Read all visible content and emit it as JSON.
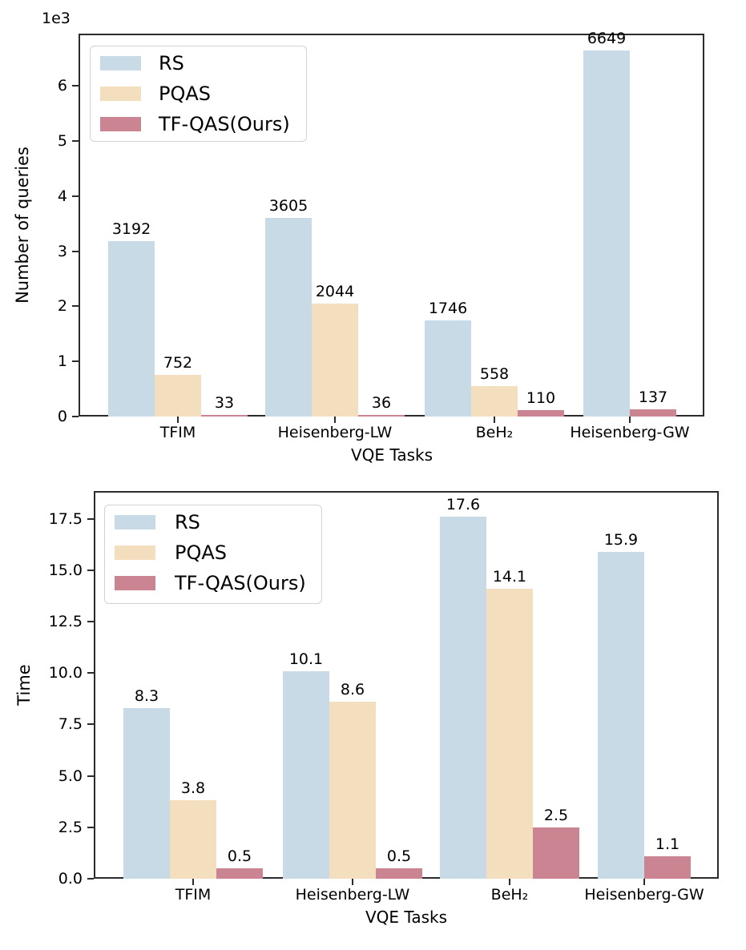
{
  "figure": {
    "background": "#ffffff",
    "text_color": "#000000",
    "spine_color": "#2b2b2b"
  },
  "chart_data": [
    {
      "type": "bar",
      "title": "",
      "xlabel": "VQE Tasks",
      "ylabel": "Number of queries",
      "offset_text": "1e3",
      "categories": [
        "TFIM",
        "Heisenberg-LW",
        "BeH₂",
        "Heisenberg-GW"
      ],
      "series": [
        {
          "name": "RS",
          "color": "#c9dae7",
          "values": [
            3192,
            3605,
            1746,
            6649
          ],
          "labels": [
            "3192",
            "3605",
            "1746",
            "6649"
          ]
        },
        {
          "name": "PQAS",
          "color": "#f3dfbe",
          "values": [
            752,
            2044,
            558,
            null
          ],
          "labels": [
            "752",
            "2044",
            "558",
            null
          ]
        },
        {
          "name": "TF-QAS(Ours)",
          "color": "#cb8592",
          "values": [
            33,
            36,
            110,
            137
          ],
          "labels": [
            "33",
            "36",
            "110",
            "137"
          ]
        }
      ],
      "ylim": [
        0,
        6950
      ],
      "yticks": [
        0,
        1000,
        2000,
        3000,
        4000,
        5000,
        6000
      ],
      "ytick_labels": [
        "0",
        "1",
        "2",
        "3",
        "4",
        "5",
        "6"
      ],
      "grid": false,
      "legend_position": "upper left"
    },
    {
      "type": "bar",
      "title": "",
      "xlabel": "VQE Tasks",
      "ylabel": "Time",
      "offset_text": "",
      "categories": [
        "TFIM",
        "Heisenberg-LW",
        "BeH₂",
        "Heisenberg-GW"
      ],
      "series": [
        {
          "name": "RS",
          "color": "#c9dae7",
          "values": [
            8.3,
            10.1,
            17.6,
            15.9
          ],
          "labels": [
            "8.3",
            "10.1",
            "17.6",
            "15.9"
          ]
        },
        {
          "name": "PQAS",
          "color": "#f3dfbe",
          "values": [
            3.8,
            8.6,
            14.1,
            null
          ],
          "labels": [
            "3.8",
            "8.6",
            "14.1",
            null
          ]
        },
        {
          "name": "TF-QAS(Ours)",
          "color": "#cb8592",
          "values": [
            0.5,
            0.5,
            2.5,
            1.1
          ],
          "labels": [
            "0.5",
            "0.5",
            "2.5",
            "1.1"
          ]
        }
      ],
      "ylim": [
        0,
        18.85
      ],
      "yticks": [
        0,
        2.5,
        5,
        7.5,
        10,
        12.5,
        15,
        17.5
      ],
      "ytick_labels": [
        "0.0",
        "2.5",
        "5.0",
        "7.5",
        "10.0",
        "12.5",
        "15.0",
        "17.5"
      ],
      "grid": false,
      "legend_position": "upper left"
    }
  ]
}
